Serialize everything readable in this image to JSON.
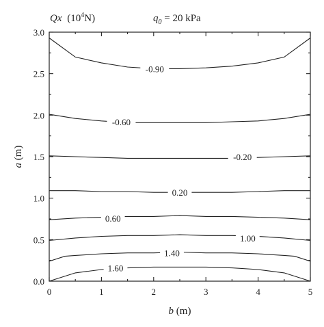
{
  "chart_data": {
    "type": "contour",
    "title_prefix": "Qx",
    "title_unit": "(10",
    "title_unit_exp": "4",
    "title_unit_suffix": "N)",
    "load_symbol": "q",
    "load_subscript": "0",
    "load_value": " = 20 kPa",
    "xlabel_var": "b",
    "xlabel_unit": " (m)",
    "ylabel_var": "a",
    "ylabel_unit": " (m)",
    "xlim": [
      0,
      5
    ],
    "ylim": [
      0,
      3.0
    ],
    "x_ticks": [
      0,
      1,
      2,
      3,
      4,
      5
    ],
    "x_tick_labels": [
      "0",
      "1",
      "2",
      "3",
      "4",
      "5"
    ],
    "y_ticks": [
      0,
      0.5,
      1.0,
      1.5,
      2.0,
      2.5,
      3.0
    ],
    "y_tick_labels": [
      "0.0",
      "0.5",
      "1.0",
      "1.5",
      "2.0",
      "2.5",
      "3.0"
    ],
    "contours": [
      {
        "label": "-0.90",
        "label_at": [
          2.02,
          2.56
        ],
        "points": [
          [
            0,
            2.93
          ],
          [
            0.5,
            2.7
          ],
          [
            1.0,
            2.63
          ],
          [
            1.5,
            2.58
          ],
          [
            2.0,
            2.56
          ],
          [
            2.5,
            2.56
          ],
          [
            3.0,
            2.57
          ],
          [
            3.5,
            2.59
          ],
          [
            4.0,
            2.63
          ],
          [
            4.5,
            2.7
          ],
          [
            5.0,
            2.93
          ]
        ]
      },
      {
        "label": "-0.60",
        "label_at": [
          1.38,
          1.92
        ],
        "points": [
          [
            0,
            2.01
          ],
          [
            0.5,
            1.96
          ],
          [
            1.0,
            1.93
          ],
          [
            1.5,
            1.91
          ],
          [
            2.0,
            1.91
          ],
          [
            2.5,
            1.91
          ],
          [
            3.0,
            1.91
          ],
          [
            3.5,
            1.92
          ],
          [
            4.0,
            1.93
          ],
          [
            4.5,
            1.96
          ],
          [
            5.0,
            2.01
          ]
        ]
      },
      {
        "label": "-0.20",
        "label_at": [
          3.7,
          1.5
        ],
        "points": [
          [
            0,
            1.51
          ],
          [
            0.5,
            1.5
          ],
          [
            1.0,
            1.49
          ],
          [
            1.5,
            1.48
          ],
          [
            2.0,
            1.48
          ],
          [
            2.5,
            1.48
          ],
          [
            3.0,
            1.48
          ],
          [
            3.5,
            1.48
          ],
          [
            4.0,
            1.49
          ],
          [
            4.5,
            1.5
          ],
          [
            5.0,
            1.51
          ]
        ]
      },
      {
        "label": "0.20",
        "label_at": [
          2.5,
          1.07
        ],
        "points": [
          [
            0,
            1.09
          ],
          [
            0.5,
            1.09
          ],
          [
            1.0,
            1.08
          ],
          [
            1.5,
            1.08
          ],
          [
            2.0,
            1.07
          ],
          [
            2.5,
            1.07
          ],
          [
            3.0,
            1.07
          ],
          [
            3.5,
            1.07
          ],
          [
            4.0,
            1.08
          ],
          [
            4.5,
            1.09
          ],
          [
            5.0,
            1.09
          ]
        ]
      },
      {
        "label": "0.60",
        "label_at": [
          1.22,
          0.76
        ],
        "points": [
          [
            0,
            0.74
          ],
          [
            0.5,
            0.76
          ],
          [
            1.0,
            0.77
          ],
          [
            1.5,
            0.78
          ],
          [
            2.0,
            0.78
          ],
          [
            2.5,
            0.79
          ],
          [
            3.0,
            0.78
          ],
          [
            3.5,
            0.78
          ],
          [
            4.0,
            0.77
          ],
          [
            4.5,
            0.76
          ],
          [
            5.0,
            0.74
          ]
        ]
      },
      {
        "label": "1.00",
        "label_at": [
          3.8,
          0.52
        ],
        "points": [
          [
            0,
            0.49
          ],
          [
            0.5,
            0.52
          ],
          [
            1.0,
            0.54
          ],
          [
            1.5,
            0.55
          ],
          [
            2.0,
            0.55
          ],
          [
            2.5,
            0.56
          ],
          [
            3.0,
            0.55
          ],
          [
            3.5,
            0.55
          ],
          [
            4.0,
            0.54
          ],
          [
            4.5,
            0.52
          ],
          [
            5.0,
            0.49
          ]
        ]
      },
      {
        "label": "1.40",
        "label_at": [
          2.35,
          0.34
        ],
        "points": [
          [
            0,
            0.24
          ],
          [
            0.3,
            0.3
          ],
          [
            0.5,
            0.31
          ],
          [
            1.0,
            0.33
          ],
          [
            1.5,
            0.34
          ],
          [
            2.0,
            0.34
          ],
          [
            2.5,
            0.35
          ],
          [
            3.0,
            0.34
          ],
          [
            3.5,
            0.34
          ],
          [
            4.0,
            0.33
          ],
          [
            4.5,
            0.31
          ],
          [
            4.7,
            0.3
          ],
          [
            5.0,
            0.24
          ]
        ]
      },
      {
        "label": "1.60",
        "label_at": [
          1.27,
          0.16
        ],
        "points": [
          [
            0,
            0.0
          ],
          [
            0.5,
            0.1
          ],
          [
            1.0,
            0.14
          ],
          [
            1.5,
            0.16
          ],
          [
            2.0,
            0.17
          ],
          [
            2.5,
            0.17
          ],
          [
            3.0,
            0.17
          ],
          [
            3.5,
            0.16
          ],
          [
            4.0,
            0.14
          ],
          [
            4.5,
            0.1
          ],
          [
            5.0,
            0.0
          ]
        ]
      }
    ]
  }
}
